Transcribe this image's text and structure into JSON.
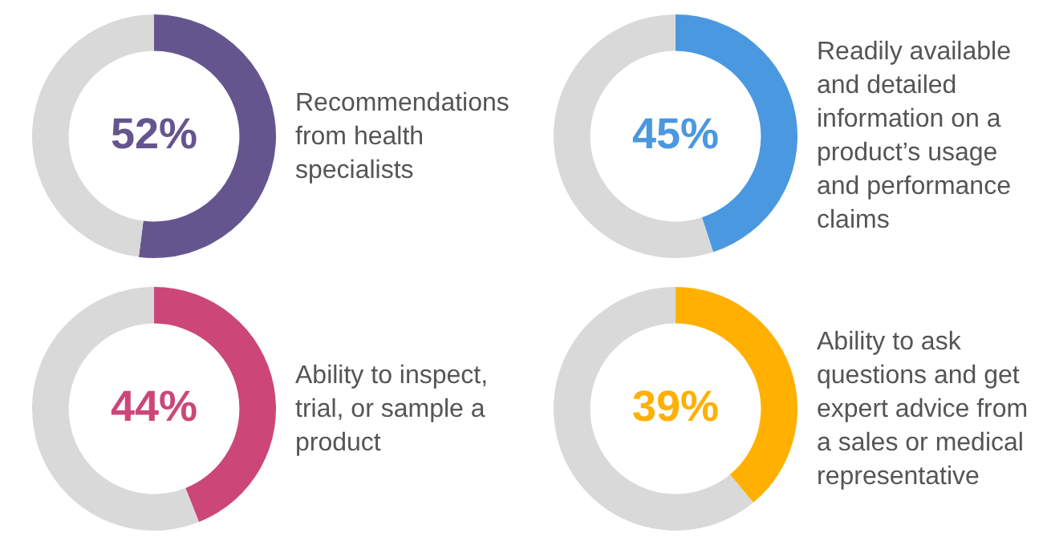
{
  "chart_data": [
    {
      "type": "donut",
      "title": "Recommendations from health specialists",
      "categories": [
        null,
        null
      ],
      "values": [
        52,
        48
      ],
      "colors": [
        "#65558f",
        "#d9d9d9"
      ],
      "value_labels": [
        "52%",
        null
      ]
    },
    {
      "type": "donut",
      "title": "Readily available and detailed information on a product’s usage and performance claims",
      "categories": [
        null,
        null
      ],
      "values": [
        45,
        55
      ],
      "colors": [
        "#4a98e0",
        "#d9d9d9"
      ],
      "value_labels": [
        "45%",
        null
      ]
    },
    {
      "type": "donut",
      "title": "Ability to inspect, trial, or sample a product",
      "categories": [
        null,
        null
      ],
      "values": [
        44,
        56
      ],
      "colors": [
        "#cc4778",
        "#d9d9d9"
      ],
      "value_labels": [
        "44%",
        null
      ]
    },
    {
      "type": "donut",
      "title": "Ability to ask questions and get expert advice from a sales or medical representative",
      "categories": [
        null,
        null
      ],
      "values": [
        39,
        61
      ],
      "colors": [
        "#ffb000",
        "#d9d9d9"
      ],
      "value_labels": [
        "39%",
        null
      ]
    }
  ]
}
